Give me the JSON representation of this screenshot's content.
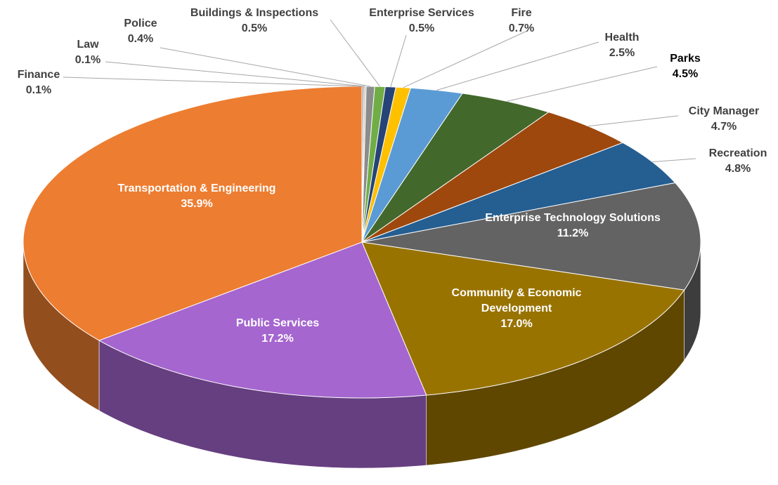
{
  "chart_data": {
    "type": "pie",
    "categories": [
      "Finance",
      "Law",
      "Police",
      "Buildings & Inspections",
      "Enterprise Services",
      "Fire",
      "Health",
      "Parks",
      "City Manager",
      "Recreation",
      "Enterprise Technology Solutions",
      "Community & Economic Development",
      "Public Services",
      "Transportation & Engineering"
    ],
    "values": [
      0.1,
      0.1,
      0.4,
      0.5,
      0.5,
      0.7,
      2.5,
      4.5,
      4.7,
      4.8,
      11.2,
      17.0,
      17.2,
      35.9
    ],
    "value_labels": [
      "0.1%",
      "0.1%",
      "0.4%",
      "0.5%",
      "0.5%",
      "0.7%",
      "2.5%",
      "4.5%",
      "4.7%",
      "4.8%",
      "11.2%",
      "17.0%",
      "17.2%",
      "35.9%"
    ],
    "colors": [
      "#a5a5a5",
      "#c9c9c9",
      "#8c8c8c",
      "#70ad47",
      "#264478",
      "#ffc000",
      "#5b9bd5",
      "#43682b",
      "#9e480e",
      "#255e91",
      "#636363",
      "#997300",
      "#a566cf",
      "#ed7d31"
    ]
  }
}
